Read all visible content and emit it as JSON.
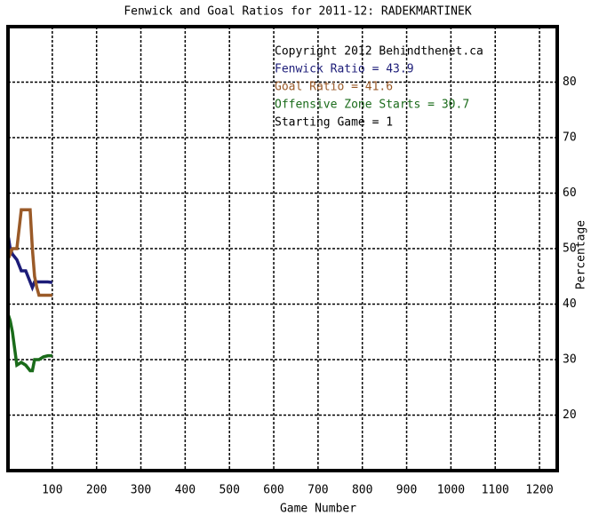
{
  "chart_data": {
    "type": "line",
    "title": "Fenwick and Goal Ratios for 2011-12: RADEKMARTINEK",
    "x_label": "Game Number",
    "y_label": "Percentage",
    "annotations": [
      "Copyright 2012 Behindthenet.ca",
      "Starting Game = 1"
    ],
    "x": [
      1,
      5,
      10,
      20,
      30,
      40,
      50,
      55,
      60,
      65,
      70,
      80,
      90,
      100
    ],
    "series": [
      {
        "name": "Fenwick Ratio = 43.9",
        "color": "#1c1c78",
        "values": [
          52,
          50,
          49,
          48,
          46,
          46,
          44,
          43,
          44,
          44,
          44,
          44,
          44,
          43.9
        ]
      },
      {
        "name": "Goal Ratio = 41.6",
        "color": "#9a5a28",
        "values": [
          50,
          49,
          50,
          50,
          57,
          57,
          57,
          50,
          45,
          43,
          41.6,
          41.6,
          41.6,
          41.6
        ]
      },
      {
        "name": "Offensive Zone Starts = 30.7",
        "color": "#1a6b1a",
        "values": [
          38,
          37,
          35,
          29,
          29.5,
          29,
          28,
          28,
          30,
          30,
          30,
          30.5,
          30.7,
          30.7
        ]
      }
    ],
    "xlim": [
      0,
      1240
    ],
    "ylim": [
      10,
      90
    ],
    "xticks": [
      100,
      200,
      300,
      400,
      500,
      600,
      700,
      800,
      900,
      1000,
      1100,
      1200
    ],
    "yticks": [
      20,
      30,
      40,
      50,
      60,
      70,
      80
    ],
    "grid": true
  }
}
